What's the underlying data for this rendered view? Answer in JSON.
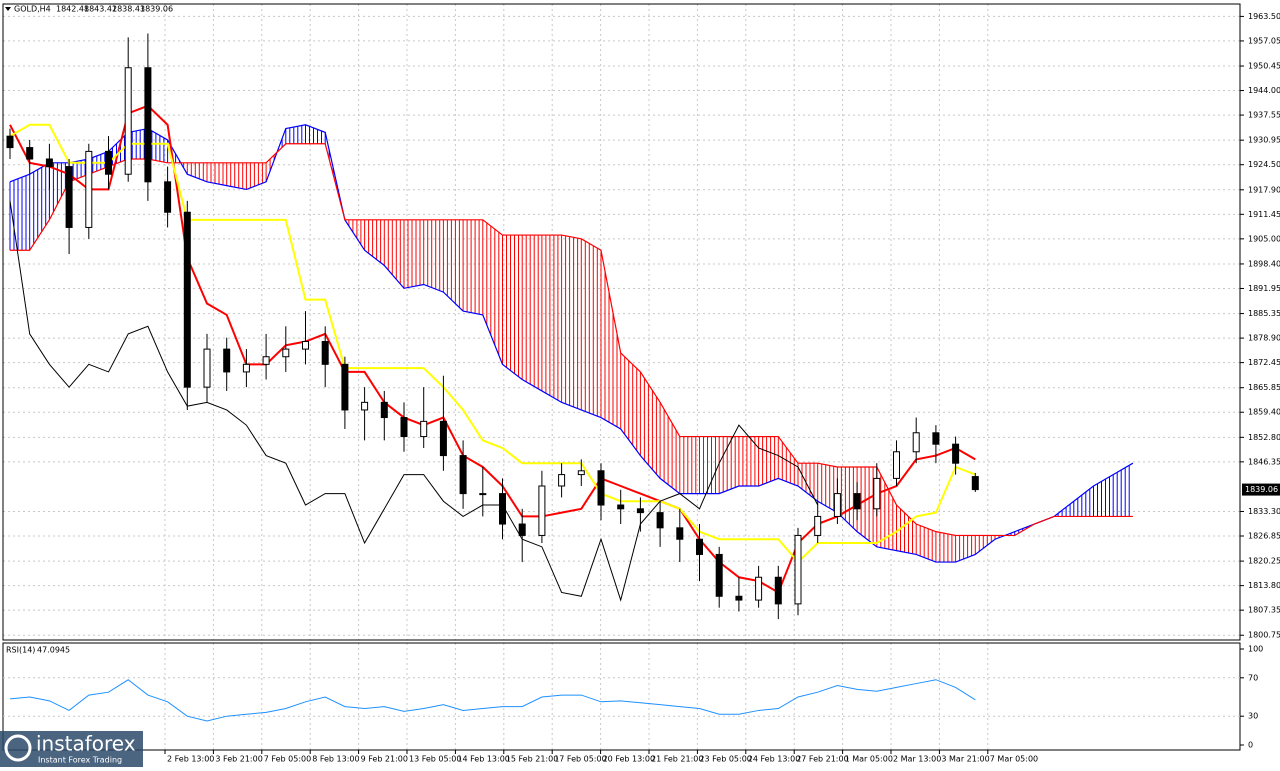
{
  "chart_data": {
    "type": "candlestick",
    "title": "GOLD,H4",
    "header_values": [
      1842.48,
      1843.42,
      1838.43,
      1839.06
    ],
    "ylim": [
      1799.5,
      1966.5
    ],
    "yticks": [
      {
        "value": 1963.5,
        "label": "1963.50"
      },
      {
        "value": 1957.05,
        "label": "1957.05"
      },
      {
        "value": 1950.45,
        "label": "1950.45"
      },
      {
        "value": 1944.0,
        "label": "1944.00"
      },
      {
        "value": 1937.55,
        "label": "1937.55"
      },
      {
        "value": 1930.95,
        "label": "1930.95"
      },
      {
        "value": 1924.5,
        "label": "1924.50"
      },
      {
        "value": 1917.9,
        "label": "1917.90"
      },
      {
        "value": 1911.45,
        "label": "1911.45"
      },
      {
        "value": 1905.0,
        "label": "1905.00"
      },
      {
        "value": 1898.4,
        "label": "1898.40"
      },
      {
        "value": 1891.95,
        "label": "1891.95"
      },
      {
        "value": 1885.35,
        "label": "1885.35"
      },
      {
        "value": 1878.9,
        "label": "1878.90"
      },
      {
        "value": 1872.45,
        "label": "1872.45"
      },
      {
        "value": 1865.85,
        "label": "1865.85"
      },
      {
        "value": 1859.4,
        "label": "1859.40"
      },
      {
        "value": 1852.8,
        "label": "1852.80"
      },
      {
        "value": 1846.35,
        "label": "1846.35"
      },
      {
        "value": 1833.3,
        "label": "1833.30"
      },
      {
        "value": 1826.85,
        "label": "1826.85"
      },
      {
        "value": 1820.25,
        "label": "1820.25"
      },
      {
        "value": 1813.8,
        "label": "1813.80"
      },
      {
        "value": 1807.35,
        "label": "1807.35"
      },
      {
        "value": 1800.75,
        "label": "1800.75"
      }
    ],
    "time_labels": [
      "2 Feb 13:00",
      "3 Feb 21:00",
      "7 Feb 05:00",
      "8 Feb 13:00",
      "9 Feb 21:00",
      "13 Feb 05:00",
      "14 Feb 13:00",
      "15 Feb 21:00",
      "17 Feb 05:00",
      "20 Feb 13:00",
      "21 Feb 21:00",
      "23 Feb 05:00",
      "24 Feb 13:00",
      "27 Feb 21:00",
      "1 Mar 05:00",
      "2 Mar 13:00",
      "3 Mar 21:00",
      "7 Mar 05:00"
    ],
    "grid": true,
    "candles": [
      [
        1932,
        1934,
        1926,
        1929
      ],
      [
        1929,
        1931,
        1922,
        1926
      ],
      [
        1926,
        1930,
        1918,
        1924
      ],
      [
        1924,
        1926,
        1901,
        1908
      ],
      [
        1908,
        1930,
        1905,
        1928
      ],
      [
        1928,
        1932,
        1918,
        1922
      ],
      [
        1922,
        1958,
        1920,
        1950
      ],
      [
        1950,
        1959,
        1915,
        1920
      ],
      [
        1920,
        1924,
        1908,
        1912
      ],
      [
        1912,
        1915,
        1860,
        1866
      ],
      [
        1866,
        1880,
        1862,
        1876
      ],
      [
        1876,
        1879,
        1865,
        1870
      ],
      [
        1870,
        1876,
        1866,
        1872
      ],
      [
        1872,
        1880,
        1868,
        1874
      ],
      [
        1874,
        1882,
        1870,
        1876
      ],
      [
        1876,
        1886,
        1872,
        1878
      ],
      [
        1878,
        1882,
        1866,
        1872
      ],
      [
        1872,
        1874,
        1855,
        1860
      ],
      [
        1860,
        1866,
        1852,
        1862
      ],
      [
        1862,
        1865,
        1852,
        1858
      ],
      [
        1858,
        1862,
        1849,
        1853
      ],
      [
        1853,
        1866,
        1850,
        1857
      ],
      [
        1857,
        1869,
        1844,
        1848
      ],
      [
        1848,
        1852,
        1834,
        1838
      ],
      [
        1838,
        1845,
        1832,
        1838
      ],
      [
        1838,
        1842,
        1826,
        1830
      ],
      [
        1830,
        1834,
        1820,
        1827
      ],
      [
        1827,
        1844,
        1825,
        1840
      ],
      [
        1840,
        1846,
        1837,
        1843
      ],
      [
        1843,
        1847,
        1840,
        1844
      ],
      [
        1844,
        1846,
        1831,
        1835
      ],
      [
        1835,
        1839,
        1830,
        1834
      ],
      [
        1834,
        1837,
        1828,
        1833
      ],
      [
        1833,
        1836,
        1824,
        1829
      ],
      [
        1829,
        1834,
        1820,
        1826
      ],
      [
        1826,
        1830,
        1815,
        1822
      ],
      [
        1822,
        1824,
        1808,
        1811
      ],
      [
        1811,
        1816,
        1807,
        1810
      ],
      [
        1810,
        1819,
        1808,
        1816
      ],
      [
        1816,
        1819,
        1805,
        1809
      ],
      [
        1809,
        1829,
        1806,
        1827
      ],
      [
        1827,
        1836,
        1825,
        1832
      ],
      [
        1832,
        1842,
        1830,
        1838
      ],
      [
        1838,
        1841,
        1831,
        1834
      ],
      [
        1834,
        1846,
        1832,
        1842
      ],
      [
        1842,
        1852,
        1840,
        1849
      ],
      [
        1849,
        1858,
        1846,
        1854
      ],
      [
        1854,
        1856,
        1846,
        1851
      ],
      [
        1851,
        1853,
        1843,
        1846
      ],
      [
        1842.48,
        1843.42,
        1838.43,
        1839.06
      ]
    ],
    "bull_color": "#ffffff",
    "bear_color": "#000000",
    "lines": [
      {
        "color": "#ff0000",
        "width": 2,
        "values": [
          1935,
          1925,
          1924,
          1922,
          1918,
          1918,
          1938,
          1940,
          1935,
          1900,
          1888,
          1885,
          1872,
          1872,
          1877,
          1878,
          1880,
          1870,
          1870,
          1862,
          1858,
          1856,
          1858,
          1848,
          1845,
          1840,
          1832,
          1832,
          1833,
          1834,
          1842,
          1840,
          1838,
          1836,
          1834,
          1826,
          1820,
          1816,
          1815,
          1812,
          1825,
          1830,
          1832,
          1835,
          1838,
          1840,
          1847,
          1848,
          1850,
          1847
        ]
      },
      {
        "color": "#ffff00",
        "width": 2,
        "values": [
          1932,
          1935,
          1935,
          1925,
          1925,
          1925,
          1930,
          1930,
          1930,
          1910,
          1910,
          1910,
          1910,
          1910,
          1910,
          1889,
          1889,
          1871,
          1871,
          1871,
          1871,
          1871,
          1866,
          1860,
          1852,
          1850,
          1846,
          1846,
          1846,
          1846,
          1838,
          1836,
          1836,
          1836,
          1834,
          1828,
          1826,
          1826,
          1826,
          1826,
          1820,
          1825,
          1825,
          1825,
          1825,
          1828,
          1832,
          1833,
          1845,
          1843
        ]
      },
      {
        "color": "#000000",
        "width": 1,
        "values": [
          1915,
          1880,
          1872,
          1866,
          1872,
          1870,
          1880,
          1882,
          1870,
          1861,
          1862,
          1860,
          1856,
          1848,
          1846,
          1835,
          1838,
          1838,
          1825,
          1834,
          1843,
          1843,
          1836,
          1832,
          1835,
          1835,
          1826,
          1824,
          1812,
          1811,
          1826,
          1810,
          1830,
          1836,
          1838,
          1834,
          1846,
          1856,
          1850,
          1848,
          1845,
          1835
        ]
      }
    ],
    "cloud": {
      "span_a": {
        "color": "#0000ff",
        "values": [
          1920,
          1922,
          1925,
          1925,
          1926,
          1928,
          1933,
          1934,
          1931,
          1922,
          1920,
          1919,
          1918,
          1920,
          1934,
          1935,
          1933,
          1910,
          1902,
          1898,
          1892,
          1893,
          1891,
          1886,
          1885,
          1872,
          1868,
          1865,
          1862,
          1860,
          1858,
          1855,
          1848,
          1842,
          1838,
          1838,
          1838,
          1840,
          1840,
          1842,
          1840,
          1836,
          1833,
          1828,
          1824,
          1823,
          1822,
          1820,
          1820,
          1822,
          1826,
          1828,
          1830,
          1832,
          1836,
          1840,
          1843,
          1846
        ]
      },
      "span_b": {
        "color": "#ff0000",
        "values": [
          1902,
          1902,
          1910,
          1920,
          1922,
          1924,
          1926,
          1926,
          1925,
          1925,
          1925,
          1925,
          1925,
          1925,
          1930,
          1930,
          1930,
          1910,
          1910,
          1910,
          1910,
          1910,
          1910,
          1910,
          1910,
          1906,
          1906,
          1906,
          1906,
          1905,
          1902,
          1875,
          1870,
          1862,
          1853,
          1853,
          1853,
          1853,
          1853,
          1853,
          1846,
          1846,
          1845,
          1845,
          1845,
          1835,
          1830,
          1828,
          1827,
          1827,
          1827,
          1827,
          1830,
          1832,
          1832,
          1832,
          1832,
          1832
        ]
      }
    },
    "rsi": {
      "label": "RSI(14)",
      "color": "#1e90ff",
      "ylim": [
        0,
        100
      ],
      "yticks": [
        100,
        70,
        30,
        0
      ],
      "values": [
        48,
        50,
        46,
        36,
        52,
        55,
        68,
        52,
        45,
        30,
        25,
        30,
        32,
        34,
        38,
        45,
        50,
        40,
        38,
        40,
        35,
        38,
        42,
        36,
        38,
        40,
        40,
        50,
        52,
        52,
        45,
        46,
        44,
        42,
        40,
        38,
        32,
        32,
        36,
        38,
        50,
        55,
        62,
        58,
        56,
        60,
        64,
        68,
        60,
        47.0945
      ]
    }
  },
  "logo": {
    "name": "instaforex",
    "tagline": "Instant Forex Trading"
  }
}
